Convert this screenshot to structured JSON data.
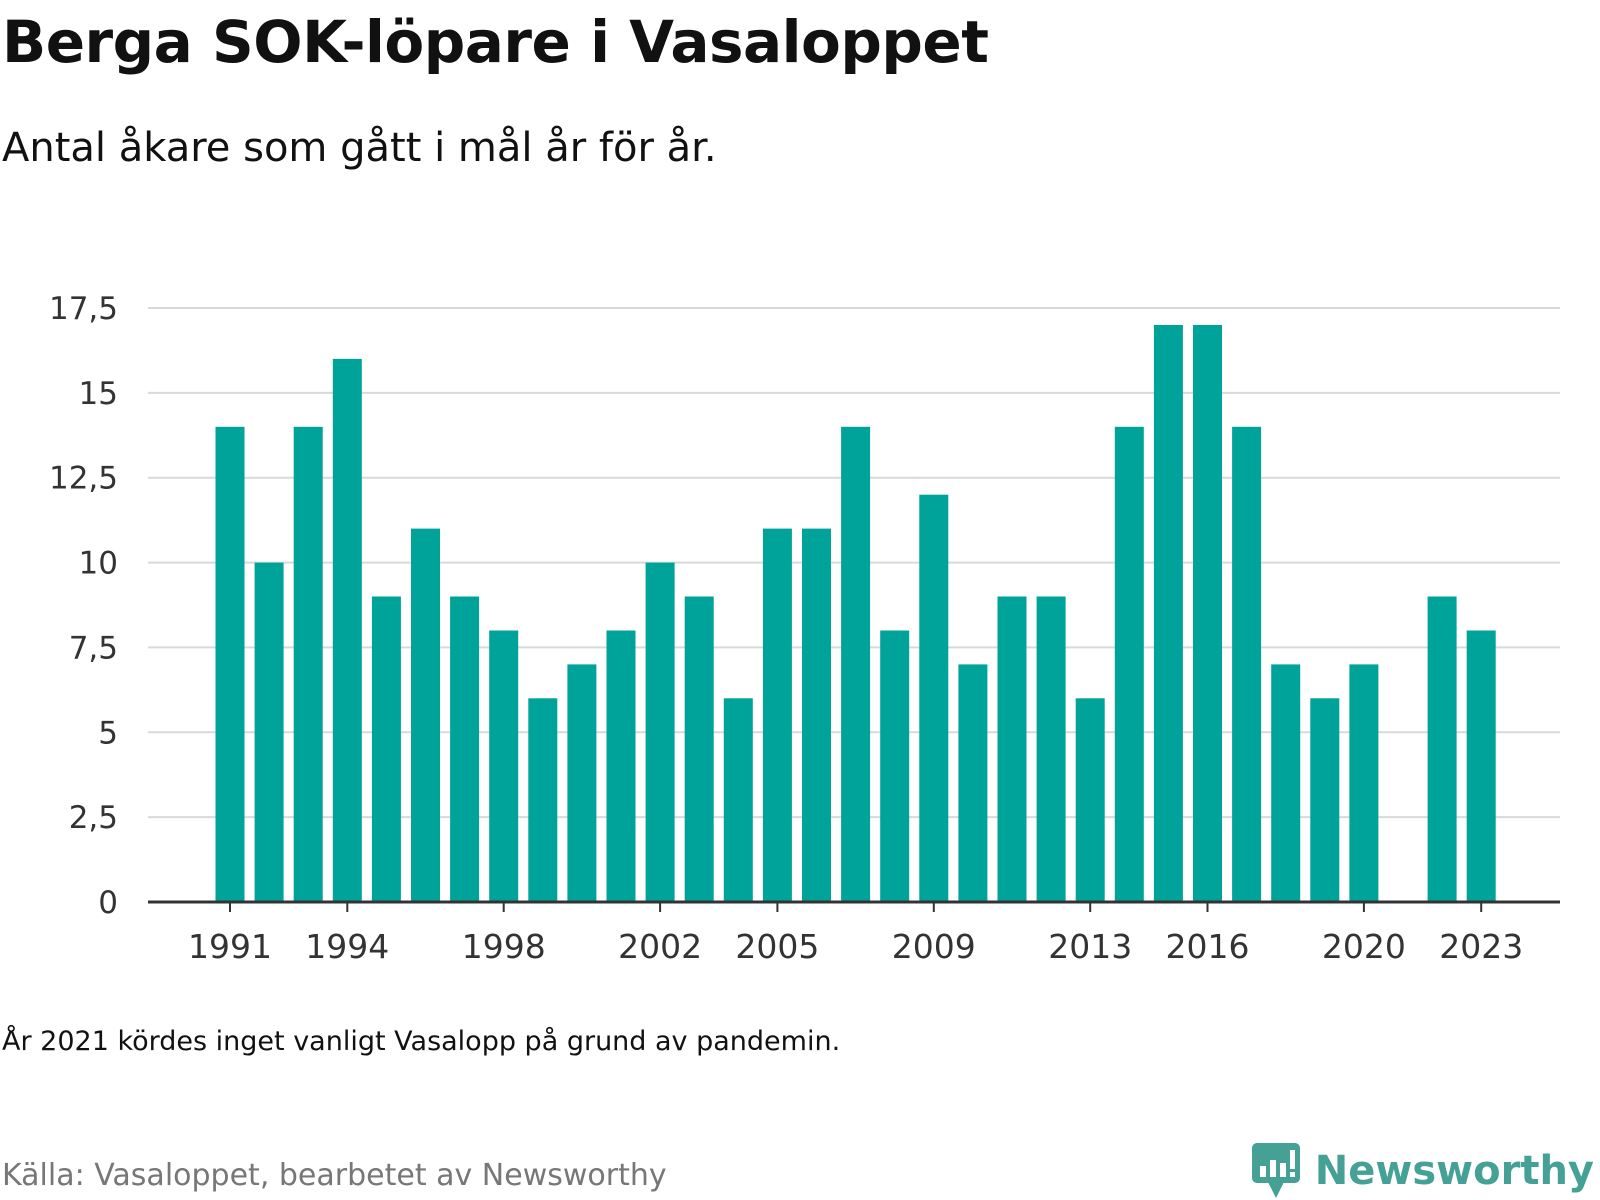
{
  "title": "Berga SOK-löpare i Vasaloppet",
  "subtitle": "Antal åkare som gått i mål år för år.",
  "note": "År 2021 kördes inget vanligt Vasalopp på grund av pandemin.",
  "source": "Källa: Vasaloppet, bearbetet av Newsworthy",
  "logo": {
    "text": "Newsworthy",
    "icon": "newsworthy-logo-icon",
    "color": "#45a096"
  },
  "colors": {
    "bar": "#00a39a",
    "grid": "#d9d9d9",
    "axis": "#333333"
  },
  "chart_data": {
    "type": "bar",
    "x": [
      1991,
      1992,
      1993,
      1994,
      1995,
      1996,
      1997,
      1998,
      1999,
      2000,
      2001,
      2002,
      2003,
      2004,
      2005,
      2006,
      2007,
      2008,
      2009,
      2010,
      2011,
      2012,
      2013,
      2014,
      2015,
      2016,
      2017,
      2018,
      2019,
      2020,
      2021,
      2022,
      2023
    ],
    "values": [
      14,
      10,
      14,
      16,
      9,
      11,
      9,
      8,
      6,
      7,
      8,
      10,
      9,
      6,
      11,
      11,
      14,
      8,
      12,
      7,
      9,
      9,
      6,
      14,
      17,
      17,
      14,
      7,
      6,
      7,
      null,
      9,
      8
    ],
    "x_tick_labels": [
      "1991",
      "1994",
      "1998",
      "2002",
      "2005",
      "2009",
      "2013",
      "2016",
      "2020",
      "2023"
    ],
    "y_ticks": [
      0,
      2.5,
      5,
      7.5,
      10,
      12.5,
      15,
      17.5
    ],
    "y_tick_labels": [
      "0",
      "2,5",
      "5",
      "7,5",
      "10",
      "12,5",
      "15",
      "17,5"
    ],
    "ylim": [
      0,
      17.5
    ],
    "xlabel": "",
    "ylabel": "",
    "grid": true,
    "legend": "none"
  }
}
